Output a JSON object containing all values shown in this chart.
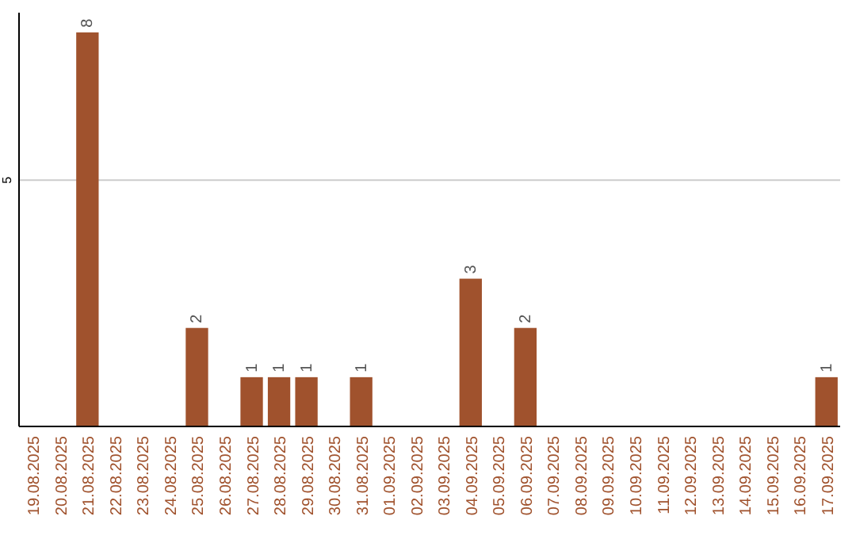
{
  "chart_data": {
    "type": "bar",
    "categories": [
      "19.08.2025",
      "20.08.2025",
      "21.08.2025",
      "22.08.2025",
      "23.08.2025",
      "24.08.2025",
      "25.08.2025",
      "26.08.2025",
      "27.08.2025",
      "28.08.2025",
      "29.08.2025",
      "30.08.2025",
      "31.08.2025",
      "01.09.2025",
      "02.09.2025",
      "03.09.2025",
      "04.09.2025",
      "05.09.2025",
      "06.09.2025",
      "07.09.2025",
      "08.09.2025",
      "09.09.2025",
      "10.09.2025",
      "11.09.2025",
      "12.09.2025",
      "13.09.2025",
      "14.09.2025",
      "15.09.2025",
      "16.09.2025",
      "17.09.2025"
    ],
    "values": [
      null,
      null,
      8,
      null,
      null,
      null,
      2,
      null,
      1,
      1,
      1,
      null,
      1,
      null,
      null,
      null,
      3,
      null,
      2,
      null,
      null,
      null,
      null,
      null,
      null,
      null,
      null,
      null,
      null,
      1
    ],
    "color": "#a0522d",
    "ylim": [
      0,
      8.4
    ],
    "yticks": [
      5
    ],
    "grid": "y",
    "data_labels": true
  }
}
